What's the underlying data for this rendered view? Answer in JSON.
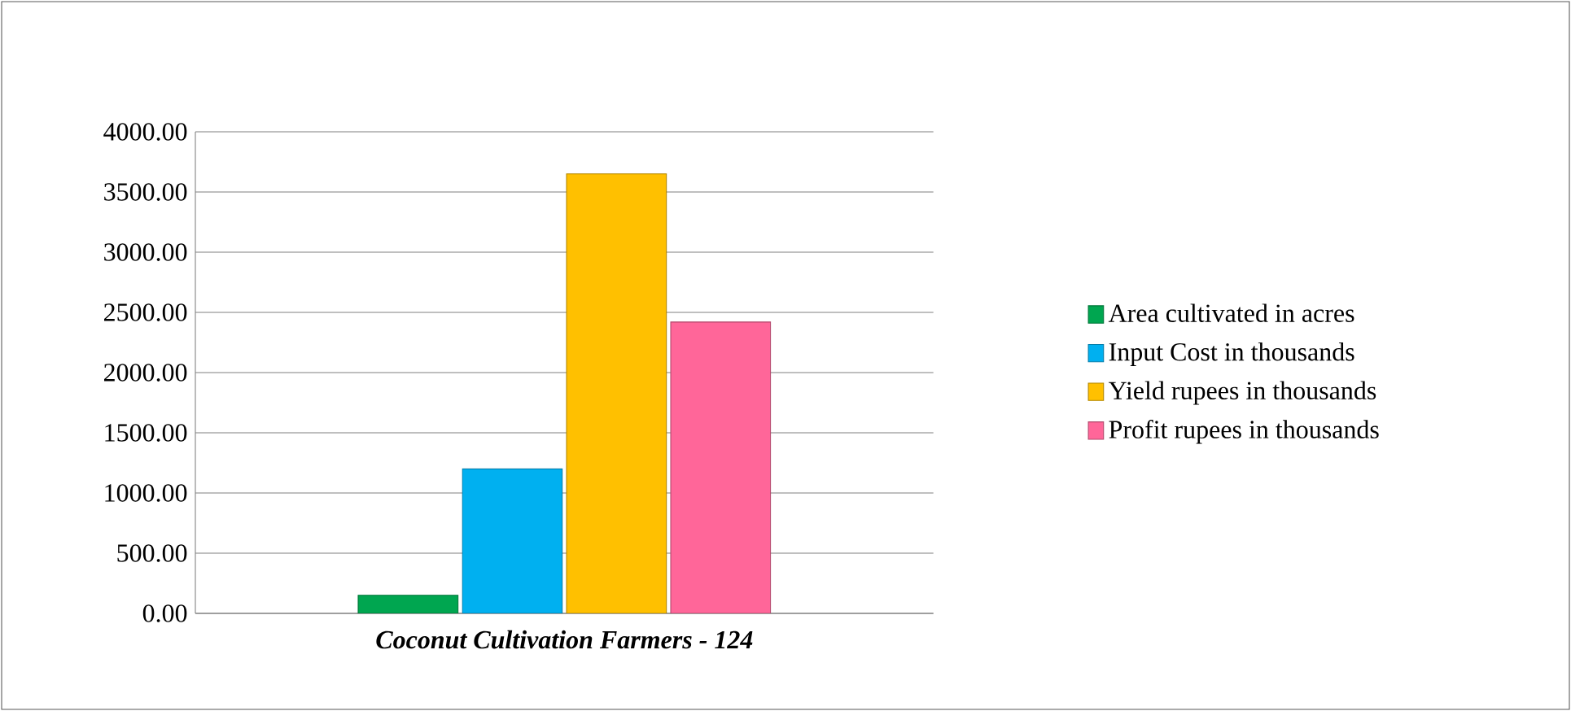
{
  "chart_data": {
    "type": "bar",
    "categories": [
      "Coconut Cultivation Farmers - 124"
    ],
    "series": [
      {
        "name": "Area cultivated in acres",
        "color": "#00a650",
        "values": [
          150
        ]
      },
      {
        "name": "Input Cost in thousands",
        "color": "#00b0f0",
        "values": [
          1200
        ]
      },
      {
        "name": "Yield rupees in thousands",
        "color": "#ffc000",
        "values": [
          3650
        ]
      },
      {
        "name": "Profit rupees in thousands",
        "color": "#ff6699",
        "values": [
          2420
        ]
      }
    ],
    "ylim": [
      0,
      4000
    ],
    "yticks": [
      {
        "value": 0,
        "label": "0.00"
      },
      {
        "value": 500,
        "label": "500.00"
      },
      {
        "value": 1000,
        "label": "1000.00"
      },
      {
        "value": 1500,
        "label": "1500.00"
      },
      {
        "value": 2000,
        "label": "2000.00"
      },
      {
        "value": 2500,
        "label": "2500.00"
      },
      {
        "value": 3000,
        "label": "3000.00"
      },
      {
        "value": 3500,
        "label": "3500.00"
      },
      {
        "value": 4000,
        "label": "4000.00"
      }
    ],
    "grid": "y",
    "legend": "right"
  }
}
